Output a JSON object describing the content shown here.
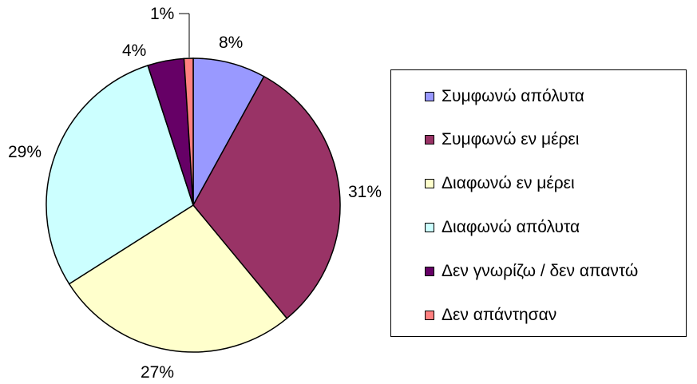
{
  "chart_data": {
    "type": "pie",
    "categories": [
      "Συμφωνώ απόλυτα",
      "Συμφωνώ εν μέρει",
      "Διαφωνώ εν μέρει",
      "Διαφωνώ απόλυτα",
      "Δεν γνωρίζω / δεν απαντώ",
      "Δεν απάντησαν"
    ],
    "values": [
      8,
      31,
      27,
      29,
      4,
      1
    ],
    "labels": [
      "8%",
      "31%",
      "27%",
      "29%",
      "4%",
      "1%"
    ],
    "colors": [
      "#9999ff",
      "#993366",
      "#ffffcc",
      "#ccffff",
      "#660066",
      "#ff8080"
    ],
    "legend": "right",
    "start_angle_deg": 0,
    "direction": "clockwise"
  }
}
